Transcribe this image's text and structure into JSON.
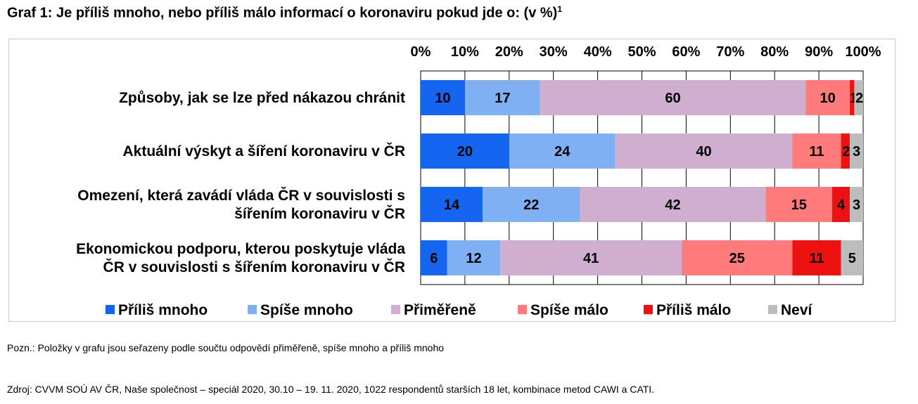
{
  "title": "Graf 1: Je příliš mnoho, nebo příliš málo informací o koronaviru pokud jde o: (v %)",
  "title_sup": "1",
  "note": "Pozn.: Položky v grafu jsou seřazeny podle součtu odpovědí přiměřeně, spíše mnoho a příliš mnoho",
  "source": "Zdroj: CVVM SOÚ AV ČR, Naše společnost – speciál 2020, 30.10 – 19. 11. 2020, 1022 respondentů starších 18 let, kombinace metod CAWI a CATI.",
  "chart_data": {
    "type": "bar",
    "orientation": "horizontal",
    "stacked": true,
    "xlim": [
      0,
      100
    ],
    "x_ticks": [
      "0%",
      "10%",
      "20%",
      "30%",
      "40%",
      "50%",
      "60%",
      "70%",
      "80%",
      "90%",
      "100%"
    ],
    "x_axis_position": "top",
    "grid": true,
    "legend_position": "bottom",
    "categories": [
      "Způsoby, jak se lze před nákazou chránit",
      "Aktuální výskyt a šíření koronaviru v ČR",
      "Omezení, která zavádí vláda ČR v souvislosti s šířením koronaviru v ČR",
      "Ekonomickou podporu, kterou poskytuje vláda ČR v souvislosti s šířením koronaviru v ČR"
    ],
    "category_lines": [
      [
        "Způsoby, jak se lze před nákazou chránit"
      ],
      [
        "Aktuální výskyt a šíření koronaviru v ČR"
      ],
      [
        "Omezení, která zavádí vláda ČR v souvislosti s",
        "šířením koronaviru v ČR"
      ],
      [
        "Ekonomickou podporu, kterou poskytuje vláda",
        "ČR v souvislosti s šířením koronaviru v ČR"
      ]
    ],
    "series": [
      {
        "name": "Příliš mnoho",
        "color": "#1565f0",
        "values": [
          10,
          20,
          14,
          6
        ]
      },
      {
        "name": "Spíše mnoho",
        "color": "#7fb0f4",
        "values": [
          17,
          24,
          22,
          12
        ]
      },
      {
        "name": "Přiměřeně",
        "color": "#cfaed0",
        "values": [
          60,
          40,
          42,
          41
        ]
      },
      {
        "name": "Spíše málo",
        "color": "#ff7b7b",
        "values": [
          10,
          11,
          15,
          25
        ]
      },
      {
        "name": "Příliš málo",
        "color": "#ee1111",
        "values": [
          1,
          2,
          4,
          11
        ]
      },
      {
        "name": "Neví",
        "color": "#bdbdbd",
        "values": [
          2,
          3,
          3,
          5
        ]
      }
    ],
    "data_labels": [
      [
        "10",
        "17",
        "60",
        "10",
        "1",
        "2"
      ],
      [
        "20",
        "24",
        "40",
        "11",
        "2",
        "3"
      ],
      [
        "14",
        "22",
        "42",
        "15",
        "4",
        "3"
      ],
      [
        "6",
        "12",
        "41",
        "25",
        "11",
        "5"
      ]
    ]
  }
}
